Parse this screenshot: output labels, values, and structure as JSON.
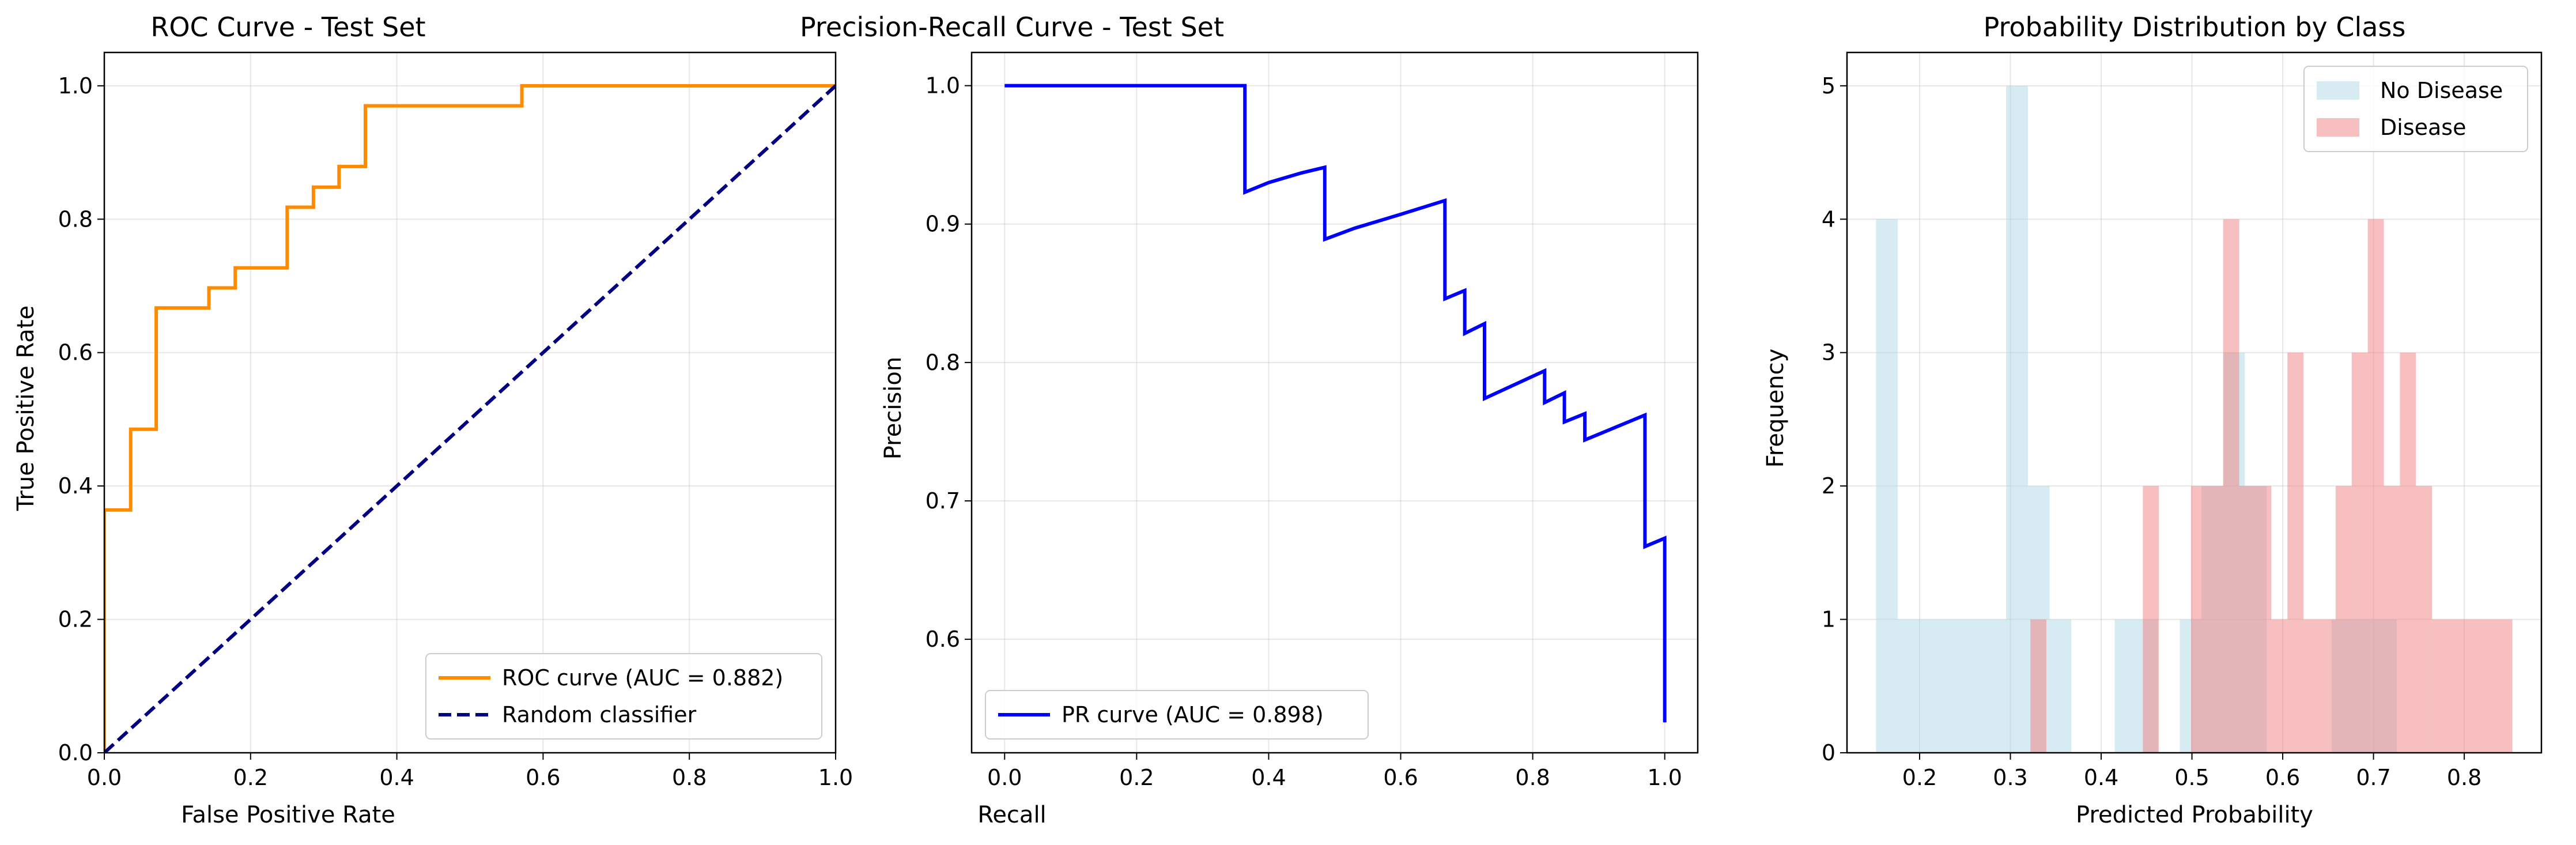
{
  "chart_data": [
    {
      "type": "line",
      "title": "ROC Curve - Test Set",
      "xlabel": "False Positive Rate",
      "ylabel": "True Positive Rate",
      "xlim": [
        0.0,
        1.0
      ],
      "ylim": [
        0.0,
        1.05
      ],
      "xticks": [
        "0.0",
        "0.2",
        "0.4",
        "0.6",
        "0.8",
        "1.0"
      ],
      "yticks": [
        "0.0",
        "0.2",
        "0.4",
        "0.6",
        "0.8",
        "1.0"
      ],
      "grid": true,
      "legend": "lower right",
      "series": [
        {
          "name": "ROC curve (AUC = 0.882)",
          "color": "#ff8c00",
          "style": "solid",
          "x": [
            0.0,
            0.0,
            0.0,
            0.036,
            0.036,
            0.071,
            0.071,
            0.143,
            0.143,
            0.179,
            0.179,
            0.25,
            0.25,
            0.286,
            0.286,
            0.321,
            0.321,
            0.357,
            0.357,
            0.571,
            0.571,
            1.0
          ],
          "y": [
            0.0,
            0.364,
            0.364,
            0.364,
            0.485,
            0.485,
            0.667,
            0.667,
            0.697,
            0.697,
            0.727,
            0.727,
            0.818,
            0.818,
            0.848,
            0.848,
            0.879,
            0.879,
            0.97,
            0.97,
            1.0,
            1.0
          ]
        },
        {
          "name": "Random classifier",
          "color": "#000080",
          "style": "dashed",
          "x": [
            0.0,
            1.0
          ],
          "y": [
            0.0,
            1.0
          ]
        }
      ]
    },
    {
      "type": "line",
      "title": "Precision-Recall Curve - Test Set",
      "xlabel": "Recall",
      "ylabel": "Precision",
      "xlim": [
        -0.05,
        1.05
      ],
      "ylim": [
        0.518,
        1.024
      ],
      "xticks": [
        "0.0",
        "0.2",
        "0.4",
        "0.6",
        "0.8",
        "1.0"
      ],
      "yticks": [
        "0.6",
        "0.7",
        "0.8",
        "0.9",
        "1.0"
      ],
      "grid": true,
      "legend": "lower left",
      "series": [
        {
          "name": "PR curve (AUC = 0.898)",
          "color": "#0000ff",
          "style": "solid",
          "x": [
            0.0,
            0.364,
            0.364,
            0.4,
            0.45,
            0.485,
            0.485,
            0.53,
            0.6,
            0.667,
            0.667,
            0.697,
            0.697,
            0.727,
            0.727,
            0.818,
            0.818,
            0.848,
            0.848,
            0.879,
            0.879,
            0.97,
            0.97,
            1.0,
            1.0
          ],
          "y": [
            1.0,
            1.0,
            0.923,
            0.93,
            0.937,
            0.941,
            0.889,
            0.897,
            0.907,
            0.917,
            0.846,
            0.852,
            0.821,
            0.828,
            0.774,
            0.794,
            0.771,
            0.778,
            0.757,
            0.763,
            0.744,
            0.762,
            0.667,
            0.673,
            0.54
          ]
        }
      ]
    },
    {
      "type": "bar",
      "title": "Probability Distribution by Class",
      "xlabel": "Predicted Probability",
      "ylabel": "Frequency",
      "xlim": [
        0.12,
        0.885
      ],
      "ylim": [
        0,
        5.25
      ],
      "xticks": [
        "0.2",
        "0.3",
        "0.4",
        "0.5",
        "0.6",
        "0.7",
        "0.8"
      ],
      "yticks": [
        "0",
        "1",
        "2",
        "3",
        "4",
        "5"
      ],
      "grid": true,
      "legend": "upper right",
      "series": [
        {
          "name": "No Disease",
          "color": "#add8e6",
          "alpha": 0.5,
          "bin_start": 0.152,
          "bin_width": 0.0239,
          "values": [
            4,
            1,
            1,
            1,
            1,
            1,
            5,
            2,
            1,
            0,
            0,
            1,
            1,
            0,
            1,
            2,
            3,
            2,
            0,
            0,
            0,
            1,
            1,
            1
          ]
        },
        {
          "name": "Disease",
          "color": "#f08080",
          "alpha": 0.5,
          "bin_start": 0.322,
          "bin_width": 0.0177,
          "values": [
            1,
            0,
            0,
            0,
            0,
            0,
            0,
            2,
            0,
            0,
            2,
            2,
            4,
            2,
            2,
            1,
            3,
            1,
            1,
            2,
            3,
            4,
            2,
            3,
            2,
            1,
            1,
            1,
            1,
            1
          ]
        }
      ]
    }
  ]
}
